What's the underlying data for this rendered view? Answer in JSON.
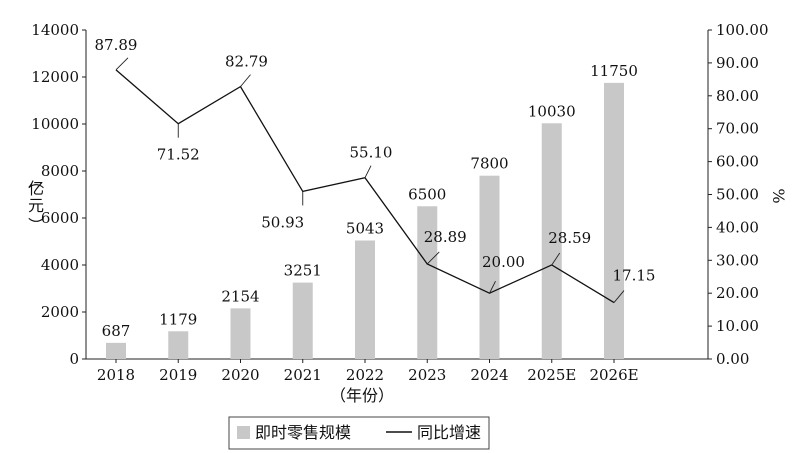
{
  "chart_data": {
    "type": "bar+line",
    "categories": [
      "2018",
      "2019",
      "2020",
      "2021",
      "2022",
      "2023",
      "2024",
      "2025E",
      "2026E"
    ],
    "series": [
      {
        "name": "即时零售规模",
        "type": "bar",
        "axis": "left",
        "values": [
          687,
          1179,
          2154,
          3251,
          5043,
          6500,
          7800,
          10030,
          11750
        ],
        "labels": [
          "687",
          "1179",
          "2154",
          "3251",
          "5043",
          "6500",
          "7800",
          "10030",
          "11750"
        ],
        "color": "#c8c8c8"
      },
      {
        "name": "同比增速",
        "type": "line",
        "axis": "right",
        "values": [
          87.89,
          71.52,
          82.79,
          50.93,
          55.1,
          28.89,
          20.0,
          28.59,
          17.15
        ],
        "labels": [
          "87.89",
          "71.52",
          "82.79",
          "50.93",
          "55.10",
          "28.89",
          "20.00",
          "28.59",
          "17.15"
        ],
        "color": "#111111"
      }
    ],
    "y_left": {
      "label": [
        "（",
        "亿",
        "元",
        "）"
      ],
      "ylim": [
        0,
        14000
      ],
      "ticks": [
        "0",
        "2000",
        "4000",
        "6000",
        "8000",
        "10000",
        "12000",
        "14000"
      ]
    },
    "y_right": {
      "label": "%",
      "ylim": [
        0,
        100
      ],
      "ticks": [
        "0.00",
        "10.00",
        "20.00",
        "30.00",
        "40.00",
        "50.00",
        "60.00",
        "70.00",
        "80.00",
        "90.00",
        "100.00"
      ]
    },
    "xlabel": "（年份）",
    "grid": false,
    "legend": "bottom-center"
  }
}
